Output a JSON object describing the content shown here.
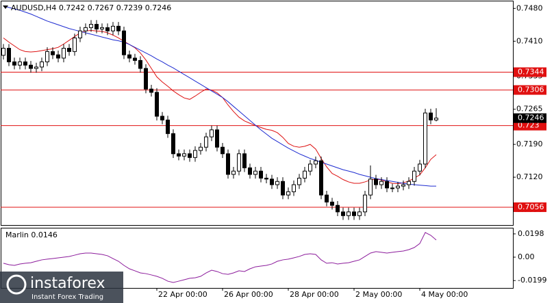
{
  "chart_data": [
    {
      "type": "candlestick",
      "title": "AUDUSD,H4  0.7242 0.7267 0.7239 0.7246",
      "categories": [
        null,
        null,
        null,
        null,
        null,
        null,
        null,
        null,
        null,
        null,
        null,
        null,
        null,
        null,
        null,
        null,
        null,
        null,
        null,
        null,
        null,
        null,
        null,
        null,
        null,
        null,
        null,
        null,
        "22 Apr 00:00",
        null,
        null,
        null,
        null,
        null,
        null,
        null,
        null,
        null,
        null,
        null,
        "26 Apr 00:00",
        null,
        null,
        null,
        null,
        null,
        null,
        null,
        null,
        null,
        null,
        null,
        "28 Apr 00:00",
        null,
        null,
        null,
        null,
        null,
        null,
        null,
        null,
        null,
        null,
        null,
        "2 May 00:00",
        null,
        null,
        null,
        null,
        null,
        null,
        null,
        null,
        null,
        null,
        null,
        "4 May 00:00",
        null,
        null,
        null
      ],
      "open": [
        0.738,
        0.7395,
        0.7366,
        0.7359,
        0.7366,
        0.7359,
        0.7352,
        0.7355,
        0.7366,
        0.7388,
        0.7381,
        0.7374,
        0.7395,
        0.7388,
        0.7417,
        0.7432,
        0.7439,
        0.7446,
        0.7436,
        0.7439,
        0.7432,
        0.7442,
        0.7432,
        0.7381,
        0.7374,
        0.7369,
        0.7352,
        0.7308,
        0.7301,
        0.725,
        0.7242,
        0.7213,
        0.717,
        0.7165,
        0.717,
        0.7162,
        0.7177,
        0.7184,
        0.7206,
        0.7221,
        0.7184,
        0.717,
        0.7126,
        0.7133,
        0.717,
        0.714,
        0.7126,
        0.7133,
        0.7118,
        0.7116,
        0.7104,
        0.7111,
        0.7082,
        0.7089,
        0.7104,
        0.7118,
        0.7133,
        0.7148,
        0.7155,
        0.7082,
        0.7067,
        0.706,
        0.7046,
        0.7038,
        0.7046,
        0.7038,
        0.7046,
        0.7082,
        0.7116,
        0.7104,
        0.7111,
        0.7097,
        0.7097,
        0.7101,
        0.7104,
        0.7111,
        0.7133,
        0.7148,
        0.7257,
        0.7242
      ],
      "high": [
        0.7404,
        0.7404,
        0.7375,
        0.7375,
        0.7375,
        0.7368,
        0.7364,
        0.7375,
        0.7397,
        0.7397,
        0.739,
        0.7404,
        0.7404,
        0.7426,
        0.7441,
        0.7448,
        0.7455,
        0.7455,
        0.7448,
        0.7448,
        0.7451,
        0.7451,
        0.7441,
        0.739,
        0.7383,
        0.7378,
        0.7361,
        0.7317,
        0.731,
        0.7259,
        0.7251,
        0.7222,
        0.7179,
        0.7179,
        0.7179,
        0.7186,
        0.7193,
        0.7215,
        0.723,
        0.723,
        0.7193,
        0.7179,
        0.7142,
        0.7179,
        0.7179,
        0.7149,
        0.7142,
        0.7142,
        0.7127,
        0.7125,
        0.712,
        0.712,
        0.7098,
        0.7113,
        0.7127,
        0.7142,
        0.7157,
        0.7164,
        0.7164,
        0.7091,
        0.7076,
        0.7069,
        0.7055,
        0.7055,
        0.7055,
        0.7055,
        0.7091,
        0.7145,
        0.7125,
        0.712,
        0.712,
        0.7106,
        0.711,
        0.7113,
        0.712,
        0.7142,
        0.7157,
        0.7266,
        0.7266,
        0.7267
      ],
      "low": [
        0.7371,
        0.7357,
        0.735,
        0.735,
        0.735,
        0.7343,
        0.7343,
        0.7346,
        0.7357,
        0.7372,
        0.7365,
        0.7365,
        0.7379,
        0.7379,
        0.7408,
        0.7423,
        0.743,
        0.7427,
        0.7427,
        0.7423,
        0.7423,
        0.7423,
        0.7372,
        0.7365,
        0.736,
        0.7343,
        0.7299,
        0.7292,
        0.7241,
        0.7233,
        0.7204,
        0.7161,
        0.7156,
        0.7156,
        0.7153,
        0.7153,
        0.7168,
        0.7175,
        0.7197,
        0.7175,
        0.7161,
        0.7117,
        0.7117,
        0.7124,
        0.7131,
        0.7117,
        0.7117,
        0.7109,
        0.7107,
        0.7095,
        0.7095,
        0.7073,
        0.7073,
        0.708,
        0.7095,
        0.7109,
        0.7124,
        0.7139,
        0.7073,
        0.7058,
        0.7051,
        0.7037,
        0.7029,
        0.7029,
        0.7029,
        0.7029,
        0.7037,
        0.7073,
        0.7095,
        0.7095,
        0.7088,
        0.7088,
        0.7088,
        0.7092,
        0.7095,
        0.7102,
        0.7124,
        0.7139,
        0.7233,
        0.7239
      ],
      "close": [
        0.7395,
        0.7366,
        0.7359,
        0.7366,
        0.7359,
        0.7352,
        0.7355,
        0.7366,
        0.7388,
        0.7381,
        0.7374,
        0.7395,
        0.7388,
        0.7417,
        0.7432,
        0.7439,
        0.7446,
        0.7436,
        0.7439,
        0.7432,
        0.7442,
        0.7432,
        0.7381,
        0.7374,
        0.7369,
        0.7352,
        0.7308,
        0.7301,
        0.725,
        0.7242,
        0.7213,
        0.717,
        0.7165,
        0.717,
        0.7162,
        0.7177,
        0.7184,
        0.7206,
        0.7221,
        0.7184,
        0.717,
        0.7126,
        0.7133,
        0.717,
        0.714,
        0.7126,
        0.7133,
        0.7118,
        0.7116,
        0.7104,
        0.7111,
        0.7082,
        0.7089,
        0.7104,
        0.7118,
        0.7133,
        0.7148,
        0.7155,
        0.7082,
        0.7067,
        0.706,
        0.7046,
        0.7038,
        0.7046,
        0.7038,
        0.7046,
        0.7082,
        0.7116,
        0.7104,
        0.7111,
        0.7097,
        0.7097,
        0.7101,
        0.7104,
        0.7111,
        0.7133,
        0.7148,
        0.7257,
        0.7242,
        0.7246
      ],
      "up_color": "#ffffff",
      "down_color": "#000000",
      "series": [
        {
          "color": "#dd1010",
          "values": [
            0.7417,
            0.7408,
            0.74,
            0.7392,
            0.7388,
            0.7387,
            0.7388,
            0.739,
            0.7392,
            0.7394,
            0.7397,
            0.7404,
            0.7412,
            0.742,
            0.7428,
            0.7432,
            0.7433,
            0.7432,
            0.7431,
            0.7428,
            0.7423,
            0.7417,
            0.741,
            0.7403,
            0.7396,
            0.7385,
            0.737,
            0.7352,
            0.7334,
            0.7323,
            0.7314,
            0.7304,
            0.7296,
            0.7289,
            0.7286,
            0.7293,
            0.7301,
            0.7308,
            0.7306,
            0.73,
            0.729,
            0.7274,
            0.726,
            0.7248,
            0.724,
            0.7235,
            0.723,
            0.7226,
            0.7222,
            0.722,
            0.7215,
            0.7205,
            0.7192,
            0.7186,
            0.7184,
            0.7186,
            0.719,
            0.718,
            0.716,
            0.7142,
            0.7128,
            0.7122,
            0.7115,
            0.711,
            0.7107,
            0.7107,
            0.711,
            0.7114,
            0.7116,
            0.7114,
            0.711,
            0.7107,
            0.7106,
            0.7108,
            0.7112,
            0.7118,
            0.7125,
            0.714,
            0.7158,
            0.7168
          ]
        },
        {
          "color": "#1c2ad0",
          "values": [
            0.7485,
            0.7482,
            0.7479,
            0.7476,
            0.7472,
            0.7468,
            0.7463,
            0.7458,
            0.7453,
            0.7449,
            0.7445,
            0.7441,
            0.7437,
            0.7434,
            0.7431,
            0.7428,
            0.7425,
            0.7422,
            0.7419,
            0.7416,
            0.7413,
            0.7411,
            0.7408,
            0.7403,
            0.7397,
            0.7391,
            0.7385,
            0.7379,
            0.7372,
            0.7366,
            0.7359,
            0.7353,
            0.7346,
            0.7339,
            0.7332,
            0.7325,
            0.7318,
            0.7311,
            0.7304,
            0.7297,
            0.729,
            0.7281,
            0.7271,
            0.7261,
            0.7251,
            0.7241,
            0.7231,
            0.7221,
            0.7212,
            0.7203,
            0.7196,
            0.7189,
            0.7182,
            0.7176,
            0.717,
            0.7165,
            0.716,
            0.7156,
            0.7152,
            0.7148,
            0.7144,
            0.714,
            0.7136,
            0.7133,
            0.713,
            0.7126,
            0.7123,
            0.712,
            0.7117,
            0.7115,
            0.7113,
            0.7111,
            0.7109,
            0.7107,
            0.7105,
            0.7104,
            0.7103,
            0.7102,
            0.7101,
            0.7101
          ]
        }
      ],
      "levels": {
        "values": [
          0.7344,
          0.7306,
          0.723,
          0.7056
        ],
        "color": "#e01010"
      },
      "ylim": [
        0.7018,
        0.7495
      ],
      "yticks": [
        {
          "value": 0.748,
          "label": "0.7480"
        },
        {
          "value": 0.741,
          "label": "0.7410"
        },
        0.7335,
        0.7265,
        {
          "value": 0.719,
          "label": "0.7190"
        },
        {
          "value": 0.712,
          "label": "0.7120"
        },
        {
          "value": 0.705,
          "label": "0.7050"
        }
      ]
    },
    {
      "type": "line",
      "title": "Marlin 0.0146",
      "color": "#8b1a9b",
      "values": [
        -0.0052,
        -0.0064,
        -0.007,
        -0.0058,
        -0.0052,
        -0.0047,
        -0.0035,
        -0.0023,
        -0.0017,
        -0.0012,
        -0.0006,
        0.0,
        0.0006,
        0.0017,
        0.0029,
        0.0035,
        0.0035,
        0.0029,
        0.0023,
        0.0012,
        -0.0012,
        -0.0035,
        -0.007,
        -0.0099,
        -0.0116,
        -0.0134,
        -0.014,
        -0.0151,
        -0.0163,
        -0.018,
        -0.0204,
        -0.0215,
        -0.0204,
        -0.0192,
        -0.018,
        -0.0175,
        -0.0163,
        -0.0134,
        -0.0111,
        -0.0122,
        -0.014,
        -0.0146,
        -0.0134,
        -0.0116,
        -0.0122,
        -0.0099,
        -0.0082,
        -0.0076,
        -0.007,
        -0.0058,
        -0.0035,
        -0.0023,
        -0.0017,
        -0.0006,
        0.0006,
        0.0023,
        0.0029,
        0.0023,
        -0.0023,
        -0.0052,
        -0.0047,
        -0.0058,
        -0.0052,
        -0.0047,
        -0.0035,
        -0.0023,
        0.0006,
        0.0035,
        0.0047,
        0.0041,
        0.0035,
        0.0041,
        0.0047,
        0.0052,
        0.0064,
        0.0082,
        0.0116,
        0.021,
        0.0186,
        0.0146
      ],
      "ylim": [
        -0.0256,
        0.025
      ],
      "yticks": [
        0.0198,
        {
          "value": 0,
          "label": "0.00"
        },
        -0.0199
      ]
    }
  ],
  "watermark": {
    "name": "instaforex",
    "tagline": "Instant Forex Trading"
  }
}
